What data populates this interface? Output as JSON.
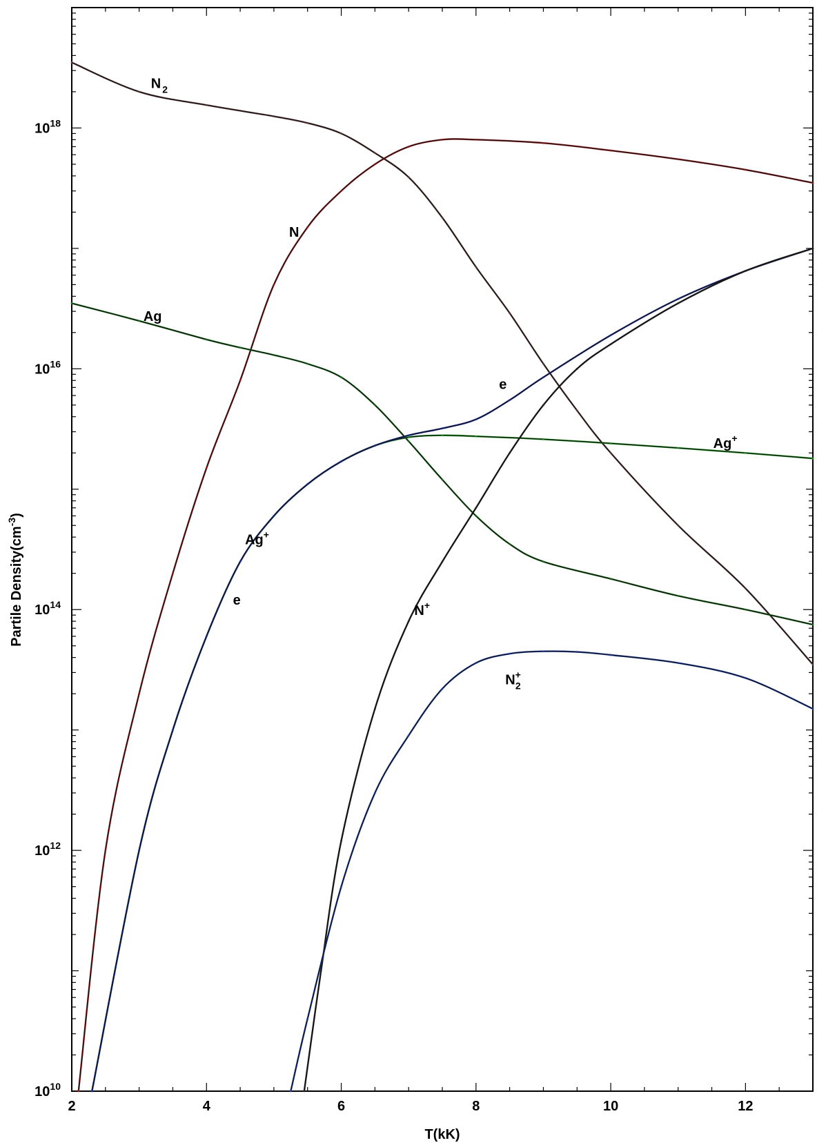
{
  "chart_data": {
    "type": "line",
    "xlabel": "T(kK)",
    "ylabel": "Partile Density(cm",
    "ylabel_sup": "-3",
    "ylabel_close": ")",
    "xlim": [
      2,
      13
    ],
    "ylim": [
      10000000000.0,
      1e+19
    ],
    "yscale": "log",
    "x_ticks": [
      "2",
      "4",
      "6",
      "8",
      "10",
      "12"
    ],
    "y_ticks": [
      {
        "base": "10",
        "exp": "10",
        "value": 10000000000.0
      },
      {
        "base": "10",
        "exp": "12",
        "value": 1000000000000.0
      },
      {
        "base": "10",
        "exp": "14",
        "value": 100000000000000.0
      },
      {
        "base": "10",
        "exp": "16",
        "value": 1e+16
      },
      {
        "base": "10",
        "exp": "18",
        "value": 1e+18
      }
    ],
    "grid": false,
    "legend": "none",
    "series": [
      {
        "name": "N2",
        "color": "#5a3a3a",
        "x": [
          2,
          3,
          4,
          5,
          5.5,
          6,
          6.5,
          7,
          7.5,
          8,
          8.5,
          9,
          9.5,
          10,
          11,
          12,
          13
        ],
        "y": [
          3.5e+18,
          2e+18,
          1.55e+18,
          1.25e+18,
          1.1e+18,
          9e+17,
          6.2e+17,
          3.9e+17,
          1.8e+17,
          7e+16,
          2.9e+16,
          1.1e+16,
          4500000000000000.0,
          2000000000000000.0,
          500000000000000.0,
          150000000000000.0,
          35000000000000.0
        ]
      },
      {
        "name": "N",
        "color": "#8b1a1a",
        "x": [
          2.1,
          2.5,
          3,
          3.5,
          4,
          4.5,
          5,
          5.5,
          6,
          6.5,
          7,
          7.5,
          8,
          9,
          10,
          11,
          12,
          13
        ],
        "y": [
          10000000000.0,
          1000000000000.0,
          20000000000000.0,
          200000000000000.0,
          1500000000000000.0,
          8000000000000000.0,
          5e+16,
          1.5e+17,
          3e+17,
          5e+17,
          7e+17,
          8e+17,
          8e+17,
          7.5e+17,
          6.5e+17,
          5.5e+17,
          4.5e+17,
          3.5e+17
        ]
      },
      {
        "name": "Ag",
        "color": "#1a6b1a",
        "x": [
          2,
          3,
          4,
          4.5,
          5,
          5.5,
          6,
          6.5,
          7,
          7.5,
          8,
          8.5,
          9,
          10,
          11,
          12,
          13
        ],
        "y": [
          3.5e+16,
          2.5e+16,
          1.75e+16,
          1.5e+16,
          1.3e+16,
          1.1e+16,
          8500000000000000.0,
          5000000000000000.0,
          2500000000000000.0,
          1200000000000000.0,
          600000000000000.0,
          350000000000000.0,
          250000000000000.0,
          180000000000000.0,
          130000000000000.0,
          100000000000000.0,
          75000000000000.0
        ]
      },
      {
        "name": "Ag+",
        "color": "#1a8b1a",
        "x": [
          2.3,
          3,
          3.5,
          4,
          4.5,
          5,
          5.5,
          6,
          6.5,
          7,
          7.5,
          8,
          9,
          10,
          11,
          12,
          13
        ],
        "y": [
          10000000000.0,
          1000000000000.0,
          10000000000000.0,
          60000000000000.0,
          250000000000000.0,
          600000000000000.0,
          1100000000000000.0,
          1700000000000000.0,
          2300000000000000.0,
          2700000000000000.0,
          2800000000000000.0,
          2750000000000000.0,
          2600000000000000.0,
          2400000000000000.0,
          2200000000000000.0,
          2000000000000000.0,
          1800000000000000.0
        ]
      },
      {
        "name": "e",
        "color": "#1a2a8b",
        "x": [
          2.3,
          3,
          3.5,
          4,
          4.5,
          5,
          5.5,
          6,
          6.5,
          7,
          7.5,
          8,
          8.5,
          9,
          10,
          11,
          12,
          13
        ],
        "y": [
          10000000000.0,
          1000000000000.0,
          10000000000000.0,
          60000000000000.0,
          250000000000000.0,
          600000000000000.0,
          1100000000000000.0,
          1700000000000000.0,
          2300000000000000.0,
          2800000000000000.0,
          3200000000000000.0,
          3800000000000000.0,
          5500000000000000.0,
          8500000000000000.0,
          1.9e+16,
          3.8e+16,
          6.5e+16,
          1e+17
        ]
      },
      {
        "name": "N+",
        "color": "#222222",
        "x": [
          5.45,
          5.7,
          6,
          6.5,
          7,
          7.5,
          8,
          8.5,
          9,
          9.5,
          10,
          11,
          12,
          13
        ],
        "y": [
          10000000000.0,
          100000000000.0,
          1200000000000.0,
          15000000000000.0,
          80000000000000.0,
          250000000000000.0,
          700000000000000.0,
          2000000000000000.0,
          5000000000000000.0,
          1e+16,
          1.6e+16,
          3.5e+16,
          6.5e+16,
          1e+17
        ]
      },
      {
        "name": "N2+",
        "color": "#1a3a9b",
        "x": [
          5.25,
          5.5,
          6,
          6.5,
          7,
          7.5,
          8,
          8.5,
          9,
          9.5,
          10,
          11,
          12,
          13
        ],
        "y": [
          10000000000.0,
          40000000000.0,
          500000000000.0,
          3000000000000.0,
          9000000000000.0,
          22000000000000.0,
          36000000000000.0,
          43000000000000.0,
          45000000000000.0,
          44500000000000.0,
          42000000000000.0,
          36000000000000.0,
          27000000000000.0,
          15000000000000.0
        ]
      }
    ],
    "annotations": [
      {
        "series": "N2",
        "base": "N",
        "sub": "2",
        "sup": "",
        "x": 3.3,
        "y": 2.15e+18
      },
      {
        "series": "N",
        "base": "N",
        "sub": "",
        "sup": "",
        "x": 5.3,
        "y": 1.25e+17
      },
      {
        "series": "Ag",
        "base": "Ag",
        "sub": "",
        "sup": "",
        "x": 3.2,
        "y": 2.5e+16
      },
      {
        "series": "e",
        "base": "e",
        "sub": "",
        "sup": "",
        "x": 8.4,
        "y": 6800000000000000.0
      },
      {
        "series": "Ag+",
        "base": "Ag",
        "sub": "",
        "sup": "+",
        "x": 11.7,
        "y": 2200000000000000.0
      },
      {
        "series": "Ag+",
        "base": "Ag",
        "sub": "",
        "sup": "+",
        "x": 4.75,
        "y": 350000000000000.0
      },
      {
        "series": "e",
        "base": "e",
        "sub": "",
        "sup": "",
        "x": 4.45,
        "y": 110000000000000.0
      },
      {
        "series": "N+",
        "base": "N",
        "sub": "",
        "sup": "+",
        "x": 7.2,
        "y": 90000000000000.0
      },
      {
        "series": "N2+",
        "base": "N",
        "sub": "2",
        "sup": "+",
        "x": 8.55,
        "y": 24000000000000.0
      }
    ]
  }
}
